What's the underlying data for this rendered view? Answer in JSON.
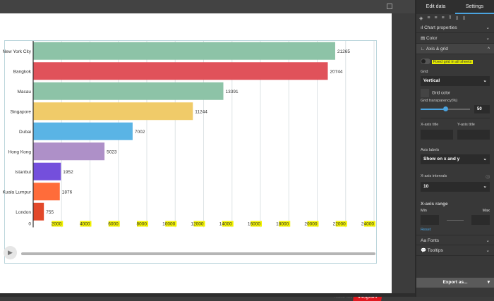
{
  "panel": {
    "tabs": [
      "Edit data",
      "Settings"
    ],
    "active_tab": "Settings",
    "sections": {
      "chart_properties": "Chart properties",
      "color": "Color",
      "axis_grid": "Axis & grid",
      "fonts": "Fonts",
      "tooltips": "Tooltips"
    },
    "fixed_grid": "Fixed grid in all sheets",
    "grid_label": "Grid",
    "grid_value": "Vertical",
    "grid_color": "Grid color",
    "grid_transparency_label": "Grid transparency(%)",
    "grid_transparency": "50",
    "x_axis_title": "X-axis title",
    "y_axis_title": "Y-axis title",
    "axis_labels_label": "Axis labels",
    "axis_labels_value": "Show on x and y",
    "x_intervals_label": "X-axis intervals",
    "x_intervals_value": "10",
    "x_range_label": "X-axis range",
    "min": "Min",
    "max": "Max",
    "reset": "Reset",
    "export": "Export as..."
  },
  "footer": {
    "made_with": "Made with",
    "logo": "infogram"
  },
  "chart_data": {
    "type": "bar",
    "orientation": "horizontal",
    "categories": [
      "New York City",
      "Bangkok",
      "Macau",
      "Singapore",
      "Dubai",
      "Hong Kong",
      "Istanbul",
      "Kuala Lumpur",
      "London"
    ],
    "values": [
      21265,
      20744,
      13391,
      11244,
      7002,
      5023,
      1952,
      1876,
      755
    ],
    "colors": [
      "#8dc3a7",
      "#e0525a",
      "#8dc3a7",
      "#f0cb69",
      "#5ab4e5",
      "#ae90c8",
      "#744fdc",
      "#ff6c3a",
      "#e2482a"
    ],
    "xticks": [
      "0",
      "2000",
      "4000",
      "6000",
      "8000",
      "10000",
      "12000",
      "14000",
      "16000",
      "18000",
      "20000",
      "22000",
      "24000"
    ],
    "xlim": [
      0,
      24000
    ],
    "grid": "vertical",
    "data_labels": true
  }
}
